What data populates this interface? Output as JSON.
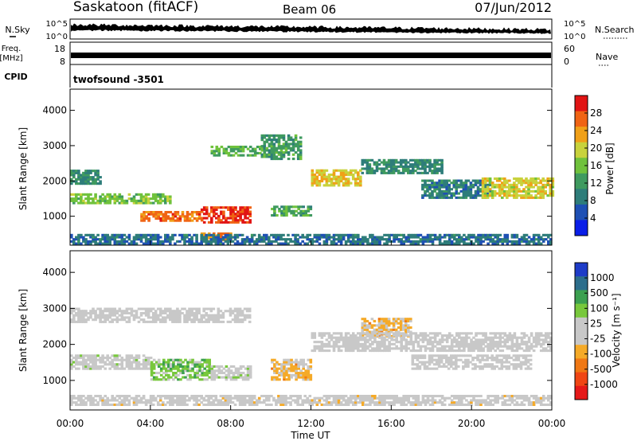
{
  "header": {
    "station": "Saskatoon (fitACF)",
    "beam": "Beam 06",
    "date": "07/Jun/2012"
  },
  "strips": {
    "nsky_label": "N.Sky",
    "nsky_ticks": [
      "10^5",
      "10^0"
    ],
    "nsearch_label": "N.Search",
    "freq_label": "Freq.",
    "freq_unit": "[MHz]",
    "freq_ticks": [
      "18",
      "8"
    ],
    "nave_label": "Nave",
    "nave_ticks": [
      "60",
      "0"
    ],
    "cpid_label": "CPID",
    "cpid_value": "twofsound -3501"
  },
  "chart_data": [
    {
      "type": "heatmap",
      "title": "",
      "ylabel": "Slant Range [km]",
      "xlabel": "",
      "x_ticks": [
        "00:00",
        "04:00",
        "08:00",
        "12:00",
        "16:00",
        "20:00",
        "00:00"
      ],
      "xlim_hours": [
        0,
        24
      ],
      "ylim": [
        180,
        4600
      ],
      "y_ticks": [
        1000,
        2000,
        3000,
        4000
      ],
      "colorbar": {
        "label": "Power [dB]",
        "ticks": [
          "28",
          "24",
          "20",
          "16",
          "12",
          "8",
          "4"
        ],
        "range": [
          0,
          32
        ],
        "colors": [
          "#0a1ee8",
          "#1e50b4",
          "#2e7d7a",
          "#3f9a5f",
          "#70c23c",
          "#c8d23c",
          "#f0a018",
          "#f06414",
          "#e11414"
        ]
      },
      "bands": [
        {
          "t0": 0.0,
          "t1": 1.5,
          "r0": 1900,
          "r1": 2300,
          "value": 10
        },
        {
          "t0": 0.0,
          "t1": 5.0,
          "r0": 1350,
          "r1": 1600,
          "value": 16
        },
        {
          "t0": 3.5,
          "t1": 6.5,
          "r0": 850,
          "r1": 1150,
          "value": 26
        },
        {
          "t0": 6.5,
          "t1": 9.0,
          "r0": 800,
          "r1": 1250,
          "value": 29
        },
        {
          "t0": 6.5,
          "t1": 8.0,
          "r0": 300,
          "r1": 500,
          "value": 25
        },
        {
          "t0": 7.0,
          "t1": 9.5,
          "r0": 2700,
          "r1": 3000,
          "value": 14
        },
        {
          "t0": 9.5,
          "t1": 11.5,
          "r0": 2600,
          "r1": 3300,
          "value": 12
        },
        {
          "t0": 10.0,
          "t1": 12.0,
          "r0": 1000,
          "r1": 1250,
          "value": 13
        },
        {
          "t0": 12.0,
          "t1": 14.5,
          "r0": 1850,
          "r1": 2300,
          "value": 21
        },
        {
          "t0": 14.5,
          "t1": 18.5,
          "r0": 2200,
          "r1": 2600,
          "value": 10
        },
        {
          "t0": 17.5,
          "t1": 21.0,
          "r0": 1500,
          "r1": 2000,
          "value": 9
        },
        {
          "t0": 20.5,
          "t1": 24.0,
          "r0": 1500,
          "r1": 2100,
          "value": 20
        },
        {
          "t0": 0.0,
          "t1": 24.0,
          "r0": 200,
          "r1": 450,
          "value": 8
        }
      ]
    },
    {
      "type": "heatmap",
      "title": "",
      "ylabel": "Slant Range [km]",
      "xlabel": "Time UT",
      "x_ticks": [
        "00:00",
        "04:00",
        "08:00",
        "12:00",
        "16:00",
        "20:00",
        "00:00"
      ],
      "xlim_hours": [
        0,
        24
      ],
      "ylim": [
        180,
        4600
      ],
      "y_ticks": [
        1000,
        2000,
        3000,
        4000
      ],
      "colorbar": {
        "label": "Velocity [m s⁻¹]",
        "ticks": [
          "1000",
          "500",
          "100",
          "25",
          "-25",
          "-100",
          "-500",
          "-1000"
        ],
        "range": [
          -1250,
          1250
        ],
        "colors": [
          "#e61919",
          "#f04614",
          "#f07814",
          "#f5aa28",
          "#c8c8c8",
          "#c8c8c8",
          "#78c83c",
          "#3ca050",
          "#2d6e8c",
          "#1e3cc8"
        ]
      },
      "bands": [
        {
          "t0": 0.0,
          "t1": 9.0,
          "r0": 2600,
          "r1": 3000,
          "value": 0
        },
        {
          "t0": 0.0,
          "t1": 4.0,
          "r0": 1300,
          "r1": 1700,
          "value": 60
        },
        {
          "t0": 4.0,
          "t1": 7.0,
          "r0": 1000,
          "r1": 1550,
          "value": 400
        },
        {
          "t0": 7.0,
          "t1": 9.0,
          "r0": 1000,
          "r1": 1400,
          "value": 80
        },
        {
          "t0": 10.0,
          "t1": 12.0,
          "r0": 1000,
          "r1": 1600,
          "value": -300
        },
        {
          "t0": 14.5,
          "t1": 17.0,
          "r0": 2200,
          "r1": 2700,
          "value": -300
        },
        {
          "t0": 12.0,
          "t1": 24.0,
          "r0": 1800,
          "r1": 2300,
          "value": 0
        },
        {
          "t0": 0.0,
          "t1": 24.0,
          "r0": 300,
          "r1": 600,
          "value": -50
        },
        {
          "t0": 17.0,
          "t1": 23.0,
          "r0": 1300,
          "r1": 1700,
          "value": 0
        }
      ]
    }
  ]
}
